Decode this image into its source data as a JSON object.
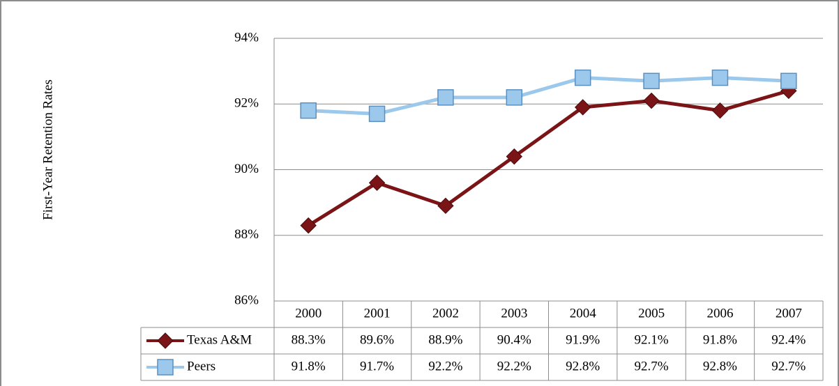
{
  "chart_data": {
    "type": "line",
    "y_label": "First-Year Retention Rates",
    "categories": [
      "2000",
      "2001",
      "2002",
      "2003",
      "2004",
      "2005",
      "2006",
      "2007"
    ],
    "series": [
      {
        "name": "Texas A&M",
        "color": "#7b1416",
        "marker": "diamond",
        "values": [
          88.3,
          89.6,
          88.9,
          90.4,
          91.9,
          92.1,
          91.8,
          92.4
        ],
        "value_labels": [
          "88.3%",
          "89.6%",
          "88.9%",
          "90.4%",
          "91.9%",
          "92.1%",
          "91.8%",
          "92.4%"
        ]
      },
      {
        "name": "Peers",
        "color": "#9cc8ec",
        "marker": "square",
        "values": [
          91.8,
          91.7,
          92.2,
          92.2,
          92.8,
          92.7,
          92.8,
          92.7
        ],
        "value_labels": [
          "91.8%",
          "91.7%",
          "92.2%",
          "92.2%",
          "92.8%",
          "92.7%",
          "92.8%",
          "92.7%"
        ]
      }
    ],
    "ylim": [
      86,
      94
    ],
    "yticks": [
      {
        "value": 86,
        "label": "86%"
      },
      {
        "value": 88,
        "label": "88%"
      },
      {
        "value": 90,
        "label": "90%"
      },
      {
        "value": 92,
        "label": "92%"
      },
      {
        "value": 94,
        "label": "94%"
      }
    ],
    "grid": true
  }
}
